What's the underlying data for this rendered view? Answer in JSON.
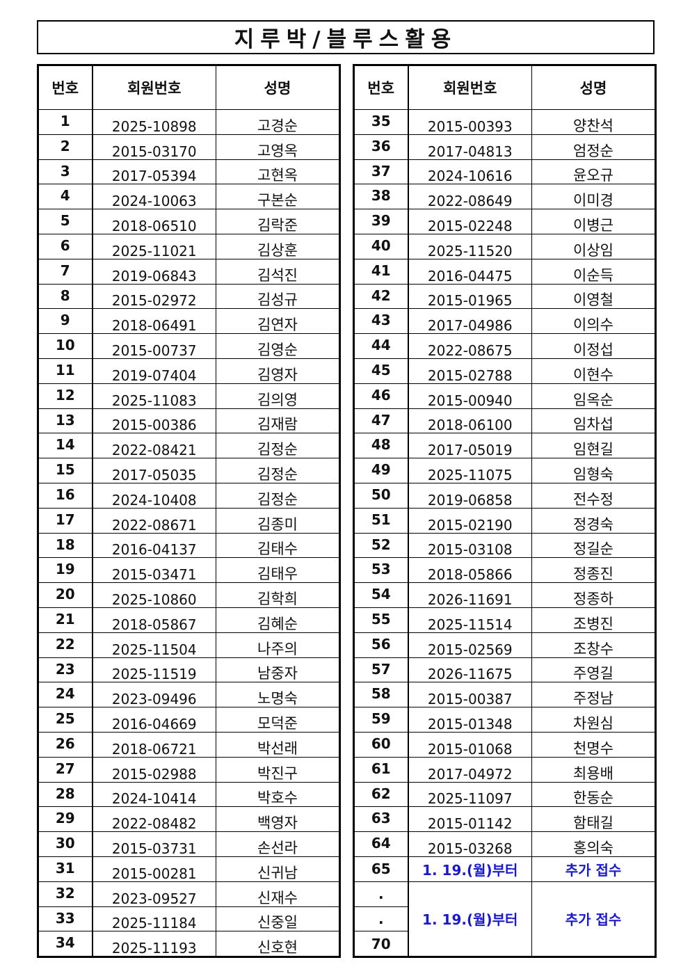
{
  "title": "지루박/블루스활용",
  "headers": {
    "no": "번호",
    "member_id": "회원번호",
    "name": "성명"
  },
  "left_rows": [
    {
      "no": "1",
      "id": "2025-10898",
      "name": "고경순"
    },
    {
      "no": "2",
      "id": "2015-03170",
      "name": "고영옥"
    },
    {
      "no": "3",
      "id": "2017-05394",
      "name": "고현옥"
    },
    {
      "no": "4",
      "id": "2024-10063",
      "name": "구본순"
    },
    {
      "no": "5",
      "id": "2018-06510",
      "name": "김락준"
    },
    {
      "no": "6",
      "id": "2025-11021",
      "name": "김상훈"
    },
    {
      "no": "7",
      "id": "2019-06843",
      "name": "김석진"
    },
    {
      "no": "8",
      "id": "2015-02972",
      "name": "김성규"
    },
    {
      "no": "9",
      "id": "2018-06491",
      "name": "김연자"
    },
    {
      "no": "10",
      "id": "2015-00737",
      "name": "김영순"
    },
    {
      "no": "11",
      "id": "2019-07404",
      "name": "김영자"
    },
    {
      "no": "12",
      "id": "2025-11083",
      "name": "김의영"
    },
    {
      "no": "13",
      "id": "2015-00386",
      "name": "김재람"
    },
    {
      "no": "14",
      "id": "2022-08421",
      "name": "김정순"
    },
    {
      "no": "15",
      "id": "2017-05035",
      "name": "김정순"
    },
    {
      "no": "16",
      "id": "2024-10408",
      "name": "김정순"
    },
    {
      "no": "17",
      "id": "2022-08671",
      "name": "김종미"
    },
    {
      "no": "18",
      "id": "2016-04137",
      "name": "김태수"
    },
    {
      "no": "19",
      "id": "2015-03471",
      "name": "김태우"
    },
    {
      "no": "20",
      "id": "2025-10860",
      "name": "김학희"
    },
    {
      "no": "21",
      "id": "2018-05867",
      "name": "김혜순"
    },
    {
      "no": "22",
      "id": "2025-11504",
      "name": "나주의"
    },
    {
      "no": "23",
      "id": "2025-11519",
      "name": "남중자"
    },
    {
      "no": "24",
      "id": "2023-09496",
      "name": "노명숙"
    },
    {
      "no": "25",
      "id": "2016-04669",
      "name": "모덕준"
    },
    {
      "no": "26",
      "id": "2018-06721",
      "name": "박선래"
    },
    {
      "no": "27",
      "id": "2015-02988",
      "name": "박진구"
    },
    {
      "no": "28",
      "id": "2024-10414",
      "name": "박호수"
    },
    {
      "no": "29",
      "id": "2022-08482",
      "name": "백영자"
    },
    {
      "no": "30",
      "id": "2015-03731",
      "name": "손선라"
    },
    {
      "no": "31",
      "id": "2015-00281",
      "name": "신귀남"
    },
    {
      "no": "32",
      "id": "2023-09527",
      "name": "신재수"
    },
    {
      "no": "33",
      "id": "2025-11184",
      "name": "신중일"
    },
    {
      "no": "34",
      "id": "2025-11193",
      "name": "신호현"
    }
  ],
  "right_rows": [
    {
      "no": "35",
      "id": "2015-00393",
      "name": "양찬석"
    },
    {
      "no": "36",
      "id": "2017-04813",
      "name": "엄정순"
    },
    {
      "no": "37",
      "id": "2024-10616",
      "name": "윤오규"
    },
    {
      "no": "38",
      "id": "2022-08649",
      "name": "이미경"
    },
    {
      "no": "39",
      "id": "2015-02248",
      "name": "이병근"
    },
    {
      "no": "40",
      "id": "2025-11520",
      "name": "이상임"
    },
    {
      "no": "41",
      "id": "2016-04475",
      "name": "이순득"
    },
    {
      "no": "42",
      "id": "2015-01965",
      "name": "이영철"
    },
    {
      "no": "43",
      "id": "2017-04986",
      "name": "이의수"
    },
    {
      "no": "44",
      "id": "2022-08675",
      "name": "이정섭"
    },
    {
      "no": "45",
      "id": "2015-02788",
      "name": "이현수"
    },
    {
      "no": "46",
      "id": "2015-00940",
      "name": "임옥순"
    },
    {
      "no": "47",
      "id": "2018-06100",
      "name": "임차섭"
    },
    {
      "no": "48",
      "id": "2017-05019",
      "name": "임현길"
    },
    {
      "no": "49",
      "id": "2025-11075",
      "name": "임형숙"
    },
    {
      "no": "50",
      "id": "2019-06858",
      "name": "전수정"
    },
    {
      "no": "51",
      "id": "2015-02190",
      "name": "정경숙"
    },
    {
      "no": "52",
      "id": "2015-03108",
      "name": "정길순"
    },
    {
      "no": "53",
      "id": "2018-05866",
      "name": "정종진"
    },
    {
      "no": "54",
      "id": "2026-11691",
      "name": "정종하"
    },
    {
      "no": "55",
      "id": "2025-11514",
      "name": "조병진"
    },
    {
      "no": "56",
      "id": "2015-02569",
      "name": "조창수"
    },
    {
      "no": "57",
      "id": "2026-11675",
      "name": "주영길"
    },
    {
      "no": "58",
      "id": "2015-00387",
      "name": "주정남"
    },
    {
      "no": "59",
      "id": "2015-01348",
      "name": "차원심"
    },
    {
      "no": "60",
      "id": "2015-01068",
      "name": "천명수"
    },
    {
      "no": "61",
      "id": "2017-04972",
      "name": "최용배"
    },
    {
      "no": "62",
      "id": "2025-11097",
      "name": "한동순"
    },
    {
      "no": "63",
      "id": "2015-01142",
      "name": "함태길"
    },
    {
      "no": "64",
      "id": "2015-03268",
      "name": "홍의숙"
    }
  ],
  "notice_row": {
    "no": "65",
    "date_text": "1.  19.(월)부터",
    "action_text": "추가  접수"
  },
  "notice_block": {
    "row_labels": [
      ".",
      ".",
      "70"
    ],
    "date_text": "1.  19.(월)부터",
    "action_text": "추가  접수"
  },
  "colors": {
    "notice": "#1a1acc",
    "border": "#000000"
  }
}
